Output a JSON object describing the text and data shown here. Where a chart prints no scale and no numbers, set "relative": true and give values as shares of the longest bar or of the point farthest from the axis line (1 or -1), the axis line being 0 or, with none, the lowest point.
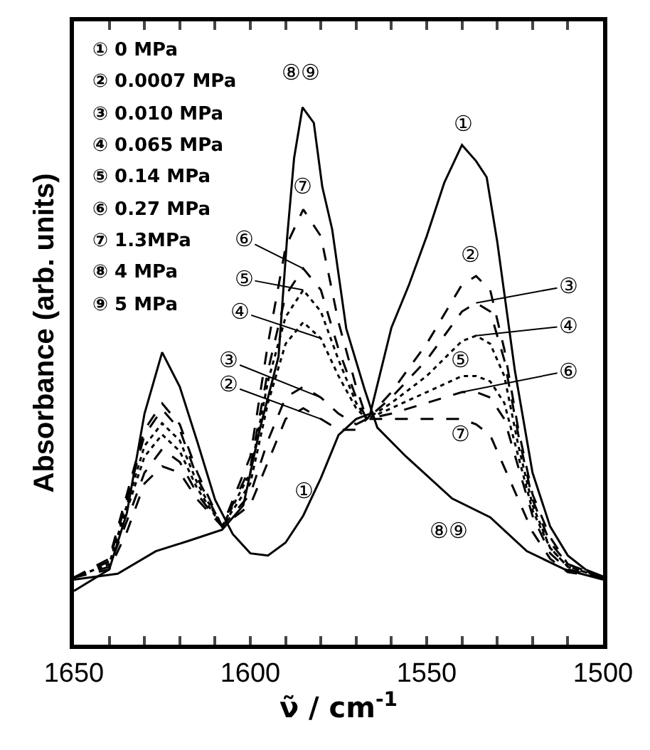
{
  "chart_data": {
    "type": "line",
    "relative": true,
    "xlabel": "ν̃ / cm$^{-1}$",
    "ylabel": "Absorbance (arb. units)",
    "xlim": [
      1650,
      1500
    ],
    "xticks": [
      1650,
      {
        "value": 1640,
        "label": null
      },
      {
        "value": 1630,
        "label": null
      },
      {
        "value": 1620,
        "label": null
      },
      {
        "value": 1610,
        "label": null
      },
      1600,
      {
        "value": 1590,
        "label": null
      },
      {
        "value": 1580,
        "label": null
      },
      {
        "value": 1570,
        "label": null
      },
      {
        "value": 1560,
        "label": null
      },
      1550,
      {
        "value": 1540,
        "label": null
      },
      {
        "value": 1530,
        "label": null
      },
      {
        "value": 1520,
        "label": null
      },
      {
        "value": 1510,
        "label": null
      },
      1500
    ],
    "tick_labels": "x",
    "marker": "none",
    "x": [
      1650,
      1640,
      1635,
      1630,
      1625,
      1620,
      1615,
      1608,
      1600,
      1595,
      1590,
      1585,
      1580,
      1575,
      1570,
      1567,
      1560,
      1550,
      1540,
      1536,
      1532,
      1528,
      1524,
      1520,
      1515,
      1510,
      1500
    ],
    "series": [
      {
        "color": "#000000",
        "line_style": "solid",
        "x": [
          1650,
          1640,
          1635,
          1630,
          1625,
          1620,
          1615,
          1610,
          1605,
          1600,
          1595,
          1590,
          1585,
          1580,
          1575,
          1570,
          1566,
          1560,
          1555,
          1550,
          1545,
          1540,
          1536,
          1533,
          1530,
          1525,
          1520,
          1515,
          1510,
          1505,
          1500
        ],
        "values": [
          0.1,
          0.14,
          0.245,
          0.43,
          0.544,
          0.48,
          0.377,
          0.27,
          0.206,
          0.17,
          0.166,
          0.19,
          0.24,
          0.31,
          0.39,
          0.42,
          0.43,
          0.59,
          0.67,
          0.76,
          0.86,
          0.93,
          0.9,
          0.87,
          0.75,
          0.51,
          0.32,
          0.22,
          0.166,
          0.14,
          0.127
        ]
      },
      {
        "color": "#000000",
        "line_style": "dashed",
        "values": [
          0.125,
          0.16,
          0.28,
          0.4,
          0.449,
          0.41,
          0.32,
          0.22,
          0.26,
          0.34,
          0.42,
          0.44,
          0.42,
          0.4,
          0.4,
          0.42,
          0.47,
          0.56,
          0.67,
          0.686,
          0.66,
          0.55,
          0.4,
          0.28,
          0.2,
          0.15,
          0.125
        ]
      },
      {
        "color": "#000000",
        "line_style": "dashed",
        "values": [
          0.125,
          0.155,
          0.27,
          0.39,
          0.438,
          0.4,
          0.31,
          0.22,
          0.28,
          0.38,
          0.46,
          0.48,
          0.46,
          0.43,
          0.41,
          0.42,
          0.46,
          0.53,
          0.62,
          0.636,
          0.62,
          0.53,
          0.39,
          0.27,
          0.19,
          0.15,
          0.125
        ]
      },
      {
        "color": "#000000",
        "line_style": "dotted",
        "values": [
          0.125,
          0.15,
          0.26,
          0.37,
          0.412,
          0.38,
          0.3,
          0.22,
          0.3,
          0.45,
          0.56,
          0.6,
          0.57,
          0.5,
          0.44,
          0.42,
          0.45,
          0.5,
          0.565,
          0.575,
          0.56,
          0.5,
          0.37,
          0.26,
          0.18,
          0.145,
          0.125
        ]
      },
      {
        "color": "#000000",
        "line_style": "dotted",
        "values": [
          0.125,
          0.15,
          0.25,
          0.35,
          0.391,
          0.36,
          0.29,
          0.22,
          0.32,
          0.49,
          0.61,
          0.66,
          0.62,
          0.53,
          0.45,
          0.42,
          0.44,
          0.47,
          0.5,
          0.5,
          0.49,
          0.45,
          0.35,
          0.25,
          0.18,
          0.145,
          0.125
        ]
      },
      {
        "color": "#000000",
        "line_style": "dashed",
        "values": [
          0.125,
          0.145,
          0.23,
          0.32,
          0.364,
          0.34,
          0.28,
          0.22,
          0.33,
          0.51,
          0.65,
          0.7,
          0.66,
          0.55,
          0.46,
          0.42,
          0.43,
          0.45,
          0.47,
          0.47,
          0.46,
          0.42,
          0.33,
          0.24,
          0.17,
          0.14,
          0.125
        ]
      },
      {
        "color": "#000000",
        "line_style": "dashed",
        "values": [
          0.125,
          0.14,
          0.21,
          0.3,
          0.332,
          0.32,
          0.27,
          0.22,
          0.35,
          0.56,
          0.74,
          0.81,
          0.76,
          0.6,
          0.48,
          0.42,
          0.42,
          0.42,
          0.42,
          0.41,
          0.39,
          0.33,
          0.27,
          0.21,
          0.16,
          0.135,
          0.125
        ]
      },
      {
        "color": "#000000",
        "line_style": "solid",
        "x": [
          1650,
          1637.6,
          1626.8,
          1617.6,
          1608,
          1602,
          1597.2,
          1592,
          1589.6,
          1587.6,
          1585.2,
          1582,
          1579.6,
          1576.8,
          1572.8,
          1567.6,
          1564,
          1556,
          1542.8,
          1532,
          1521.6,
          1510.8,
          1500
        ],
        "values": [
          0.121,
          0.132,
          0.174,
          0.193,
          0.214,
          0.259,
          0.404,
          0.536,
          0.755,
          0.905,
          1.0,
          0.971,
          0.852,
          0.773,
          0.588,
          0.475,
          0.404,
          0.351,
          0.272,
          0.237,
          0.174,
          0.14,
          0.121
        ]
      }
    ],
    "annotations": [
      "① 0 MPa",
      "② 0.0007 MPa",
      "③ 0.010 MPa",
      "④ 0.065 MPa",
      "⑤ 0.14 MPa",
      "⑥ 0.27 MPa",
      "⑦ 1.3MPa",
      "⑧ 4 MPa",
      "⑨ 5 MPa",
      {
        "text": "①",
        "x": 1540,
        "y": 0.93
      },
      {
        "text": "①",
        "x": 1590,
        "y": 0.19
      },
      {
        "text": "②",
        "x": 1536,
        "y": 0.686
      },
      {
        "text": "③",
        "x": 1536,
        "y": 0.636
      },
      {
        "text": "④",
        "x": 1536,
        "y": 0.575
      },
      {
        "text": "⑤",
        "x": 1536,
        "y": 0.5
      },
      {
        "text": "⑥",
        "x": 1540,
        "y": 0.47
      },
      {
        "text": "⑦",
        "x": 1540,
        "y": 0.42
      },
      {
        "text": "⑧⑨",
        "x": 1542.8,
        "y": 0.272
      },
      {
        "text": "⑧⑨",
        "x": 1585.2,
        "y": 1.0
      },
      {
        "text": "⑦",
        "x": 1585,
        "y": 0.81
      },
      {
        "text": "⑥",
        "x": 1585,
        "y": 0.7
      },
      {
        "text": "⑤",
        "x": 1585,
        "y": 0.66
      },
      {
        "text": "④",
        "x": 1580,
        "y": 0.57
      },
      {
        "text": "③",
        "x": 1580,
        "y": 0.46
      },
      {
        "text": "②",
        "x": 1580,
        "y": 0.42
      }
    ]
  }
}
